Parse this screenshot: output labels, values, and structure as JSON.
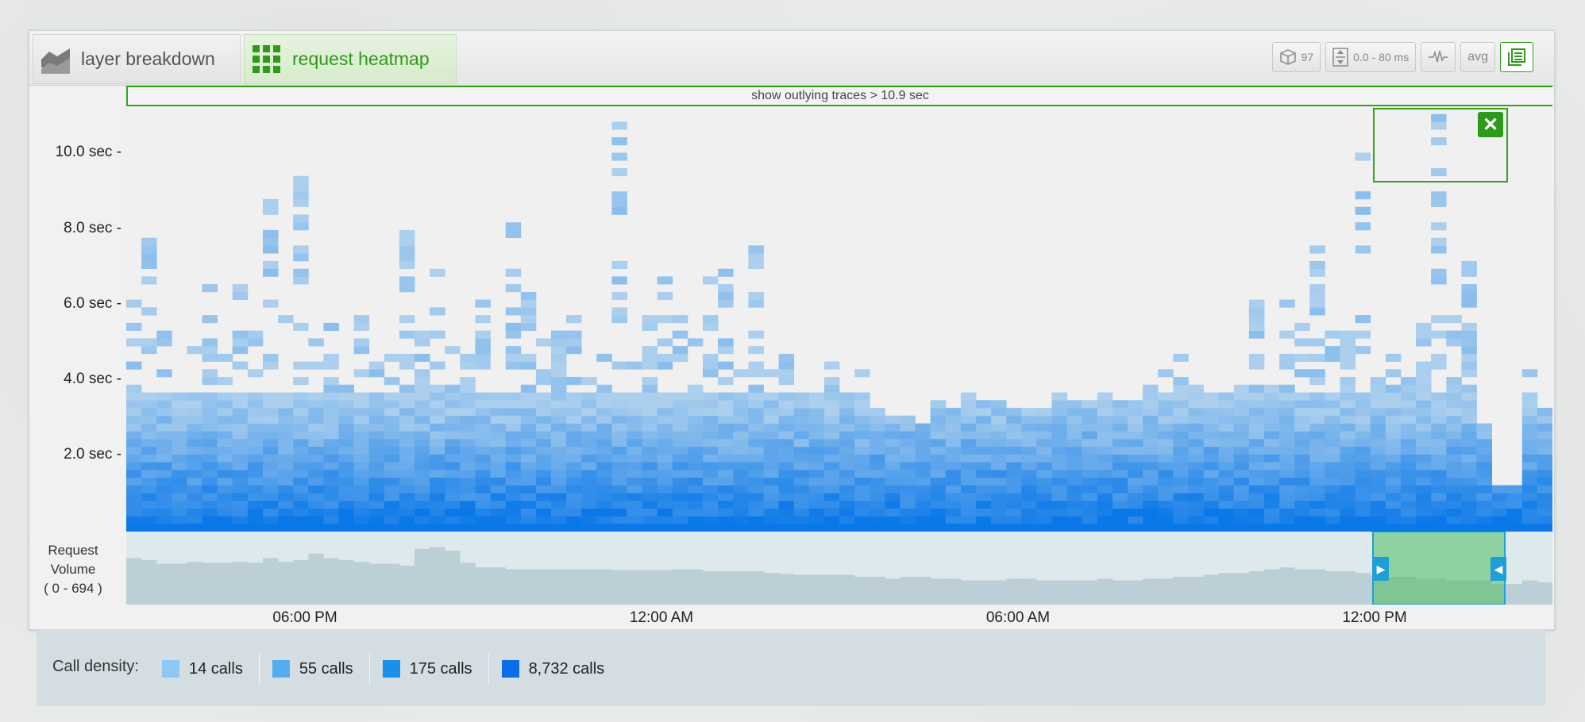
{
  "tabs": [
    {
      "label": "layer breakdown",
      "icon": "layer-chart-icon",
      "active": false
    },
    {
      "label": "request heatmap",
      "icon": "grid-icon",
      "active": true
    }
  ],
  "toolbar": {
    "traces_count": "97",
    "range": "0.0 - 80 ms",
    "avg_label": "avg"
  },
  "outlier_bar": "show outlying traces > 10.9 sec",
  "y_axis": {
    "ticks": [
      "10.0 sec",
      "8.0 sec",
      "6.0 sec",
      "4.0 sec",
      "2.0 sec"
    ]
  },
  "x_axis": {
    "ticks": [
      "06:00 PM",
      "12:00 AM",
      "06:00 AM",
      "12:00 PM"
    ]
  },
  "volume": {
    "label_line1": "Request",
    "label_line2": "Volume",
    "label_line3": "( 0 - 694 )"
  },
  "legend": {
    "title": "Call density:",
    "items": [
      {
        "label": "14 calls",
        "color": "#8ec6f4"
      },
      {
        "label": "55 calls",
        "color": "#52adf0"
      },
      {
        "label": "175 calls",
        "color": "#1990ea"
      },
      {
        "label": "8,732 calls",
        "color": "#0a6fe6"
      }
    ]
  },
  "colors": {
    "accent": "#2e9a19",
    "heat_low": "#b4d4ee",
    "heat_high": "#0a78e8",
    "volume_bar": "#bccfd6",
    "selection": "#7dcc8a"
  },
  "chart_data": {
    "type": "heatmap",
    "xlabel": "",
    "ylabel": "",
    "ylim": [
      0,
      11
    ],
    "y_ticks": [
      10,
      8,
      6,
      4,
      2
    ],
    "x_ticks": [
      "06:00 PM",
      "12:00 AM",
      "06:00 AM",
      "12:00 PM"
    ],
    "volume_range": [
      0,
      694
    ],
    "columns": 94,
    "column_heights_sec": [
      5.9,
      7.5,
      5.3,
      4.2,
      5.0,
      6.3,
      5.5,
      6.9,
      5.2,
      8.6,
      5.8,
      10.2,
      5.4,
      5.7,
      3.8,
      6.2,
      4.5,
      4.8,
      7.9,
      5.3,
      7.0,
      5.1,
      4.5,
      6.3,
      3.8,
      8.6,
      6.1,
      4.9,
      6.1,
      5.6,
      4.1,
      4.5,
      10.8,
      4.3,
      6.5,
      6.5,
      7.2,
      5.0,
      7.5,
      6.8,
      4.3,
      7.6,
      4.1,
      5.2,
      3.8,
      3.5,
      4.3,
      3.5,
      4.1,
      3.2,
      3.0,
      3.0,
      2.8,
      3.3,
      3.1,
      4.2,
      3.4,
      3.4,
      3.2,
      3.2,
      3.2,
      3.8,
      3.3,
      3.3,
      3.6,
      3.3,
      3.3,
      3.8,
      4.2,
      4.6,
      3.8,
      3.5,
      3.5,
      4.3,
      6.1,
      3.7,
      6.0,
      5.4,
      7.3,
      5.2,
      5.5,
      10.6,
      4.2,
      4.8,
      4.1,
      6.2,
      11.0,
      5.8,
      7.2,
      2.7,
      1.2,
      1.2,
      4.2,
      3.1
    ],
    "volume": [
      50,
      48,
      44,
      44,
      46,
      45,
      45,
      46,
      45,
      50,
      46,
      48,
      55,
      50,
      48,
      46,
      44,
      44,
      42,
      60,
      62,
      58,
      45,
      40,
      40,
      38,
      38,
      38,
      38,
      38,
      38,
      38,
      37,
      37,
      37,
      37,
      38,
      38,
      36,
      36,
      36,
      36,
      34,
      33,
      32,
      32,
      32,
      32,
      30,
      30,
      28,
      30,
      30,
      28,
      28,
      26,
      26,
      26,
      28,
      28,
      26,
      26,
      26,
      26,
      28,
      26,
      26,
      28,
      28,
      30,
      30,
      32,
      34,
      34,
      36,
      38,
      40,
      38,
      38,
      36,
      36,
      34,
      32,
      30,
      30,
      28,
      28,
      26,
      26,
      26,
      22,
      22,
      26,
      24
    ],
    "selection": {
      "from": "12:00 PM",
      "to": "~04:00 PM"
    },
    "legend": [
      "14 calls",
      "55 calls",
      "175 calls",
      "8,732 calls"
    ]
  }
}
